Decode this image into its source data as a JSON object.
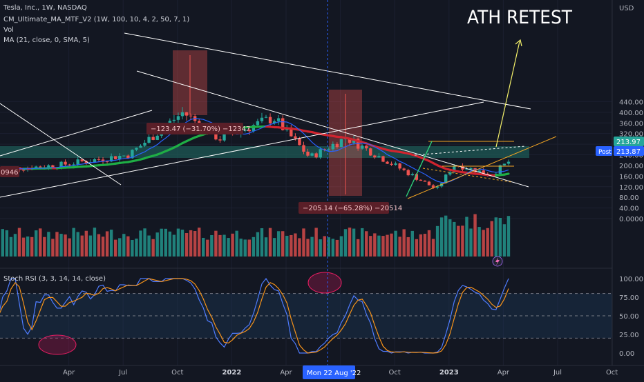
{
  "header": {
    "symbol_line": "Tesla, Inc., 1W, NASDAQ",
    "indicator_ma": "CM_Ultimate_MA_MTF_V2 (1W, 100, 10, 4, 2, 50, 7, 1)",
    "indicator_vol": "Vol",
    "indicator_sma": "MA (21, close, 0, SMA, 5)"
  },
  "annotation_text": "ATH RETEST",
  "price_axis": {
    "currency": "USD",
    "ticks": [
      "440.00",
      "400.00",
      "360.00",
      "320.00",
      "280.00",
      "240.00",
      "200.00",
      "160.00",
      "120.00",
      "80.00",
      "40.00",
      "0.0000"
    ],
    "last_price_label": "213.97",
    "post_label": "Post",
    "post_price_label": "213.87",
    "left_cut_label": "0946"
  },
  "rsi": {
    "title": "Stoch RSI (3, 3, 14, 14, close)",
    "ticks": [
      "100.00",
      "75.00",
      "50.00",
      "25.00",
      "0.00"
    ]
  },
  "time_axis": {
    "labels": [
      "Apr",
      "Jul",
      "Oct",
      "2022",
      "Apr",
      "Ju",
      "Oct",
      "2023",
      "Apr",
      "Jul",
      "Oct"
    ],
    "crosshair_label": "Mon 22 Aug '22"
  },
  "measures": [
    {
      "text": "−123.47 (−31.70%) −12347"
    },
    {
      "text": "−205.14 (−65.28%) −20514"
    }
  ],
  "chart_data": {
    "type": "candlestick",
    "symbol": "TSLA",
    "interval": "1W",
    "exchange": "NASDAQ",
    "price_range": [
      0,
      460
    ],
    "last_price": 213.97,
    "post_market_price": 213.87,
    "price_key_points": [
      {
        "date": "2021-04",
        "price": 200
      },
      {
        "date": "2021-08",
        "price": 240
      },
      {
        "date": "2021-11",
        "price": 400
      },
      {
        "date": "2022-01",
        "price": 300
      },
      {
        "date": "2022-04",
        "price": 380
      },
      {
        "date": "2022-06",
        "price": 230
      },
      {
        "date": "2022-08",
        "price": 305
      },
      {
        "date": "2023-01",
        "price": 110
      },
      {
        "date": "2023-02",
        "price": 205
      },
      {
        "date": "2023-04",
        "price": 165
      },
      {
        "date": "2023-05",
        "price": 214
      }
    ],
    "drawdowns": [
      {
        "change": -123.47,
        "percent": -31.7,
        "ticks": -12347
      },
      {
        "change": -205.14,
        "percent": -65.28,
        "ticks": -20514
      }
    ],
    "stoch_rsi_range": [
      0,
      100
    ],
    "stoch_rsi_levels": [
      20,
      80
    ],
    "grid": true,
    "legend_position": "top-left"
  },
  "colors": {
    "background": "#131722",
    "up": "#26a69a",
    "down": "#ef5350",
    "ma_up": "#1fae45",
    "ma_down": "#d1242f",
    "sma": "#2962ff",
    "trendline": "#ffffff",
    "target_arrow": "#f5f26a",
    "wedge": "#f5a623",
    "support_zone": "#1e5a55",
    "crosshair": "#2962ff",
    "rsi_k": "#4f7cff",
    "rsi_d": "#f7931a"
  }
}
